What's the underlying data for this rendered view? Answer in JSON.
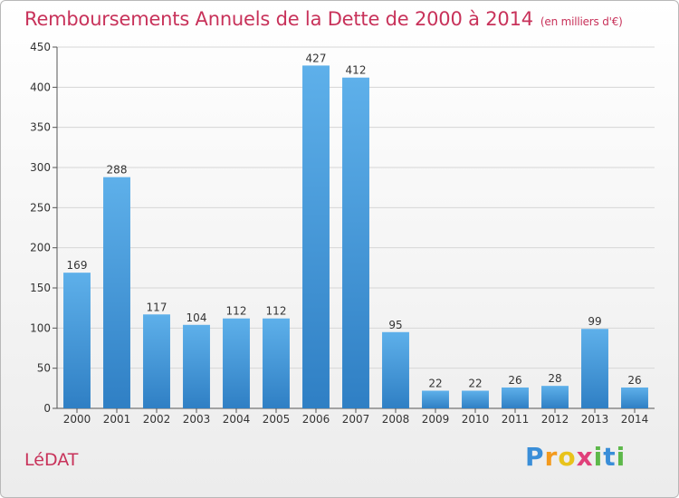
{
  "chart_data": {
    "type": "bar",
    "title": "Remboursements Annuels de la Dette de 2000 à 2014",
    "subtitle": "(en milliers d'€)",
    "categories": [
      "2000",
      "2001",
      "2002",
      "2003",
      "2004",
      "2005",
      "2006",
      "2007",
      "2008",
      "2009",
      "2010",
      "2011",
      "2012",
      "2013",
      "2014"
    ],
    "values": [
      169,
      288,
      117,
      104,
      112,
      112,
      427,
      412,
      95,
      22,
      22,
      26,
      28,
      99,
      26
    ],
    "ylim": [
      0,
      450
    ],
    "yticks": [
      0,
      50,
      100,
      150,
      200,
      250,
      300,
      350,
      400,
      450
    ],
    "grid": true,
    "legend": "none",
    "bar_color": "#4a9fde"
  },
  "footer": {
    "commune": "LéDAT",
    "logo": {
      "letters": [
        "P",
        "r",
        "o",
        "x",
        "i",
        "t",
        "i"
      ],
      "colors": [
        "#3a8ed8",
        "#f39a1e",
        "#e8c31b",
        "#e0407a",
        "#5db84a",
        "#3a8ed8",
        "#5db84a"
      ]
    }
  }
}
